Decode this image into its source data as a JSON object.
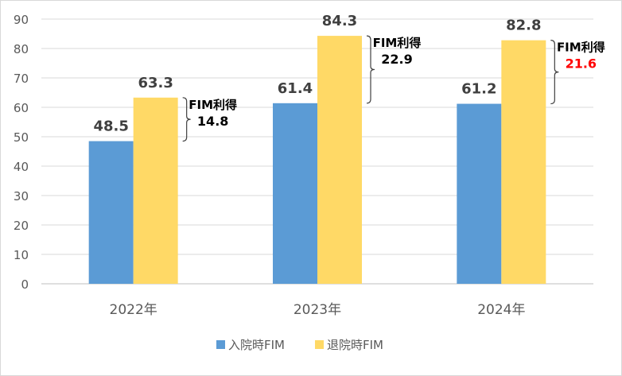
{
  "chart_data": {
    "type": "bar",
    "categories": [
      "2022年",
      "2023年",
      "2024年"
    ],
    "series": [
      {
        "name": "入院時FIM",
        "values": [
          48.5,
          61.4,
          61.2
        ],
        "color": "#5b9bd5"
      },
      {
        "name": "退院時FIM",
        "values": [
          63.3,
          84.3,
          82.8
        ],
        "color": "#ffd966"
      }
    ],
    "yticks": [
      "0",
      "10",
      "20",
      "30",
      "40",
      "50",
      "60",
      "70",
      "80",
      "90"
    ],
    "ylim": [
      0,
      90
    ],
    "grid": true,
    "legend_position": "bottom",
    "annotations": [
      {
        "label": "FIM利得",
        "value": "14.8",
        "value_color": "#000000"
      },
      {
        "label": "FIM利得",
        "value": "22.9",
        "value_color": "#000000"
      },
      {
        "label": "FIM利得",
        "value": "21.6",
        "value_color": "#ff0000"
      }
    ]
  }
}
